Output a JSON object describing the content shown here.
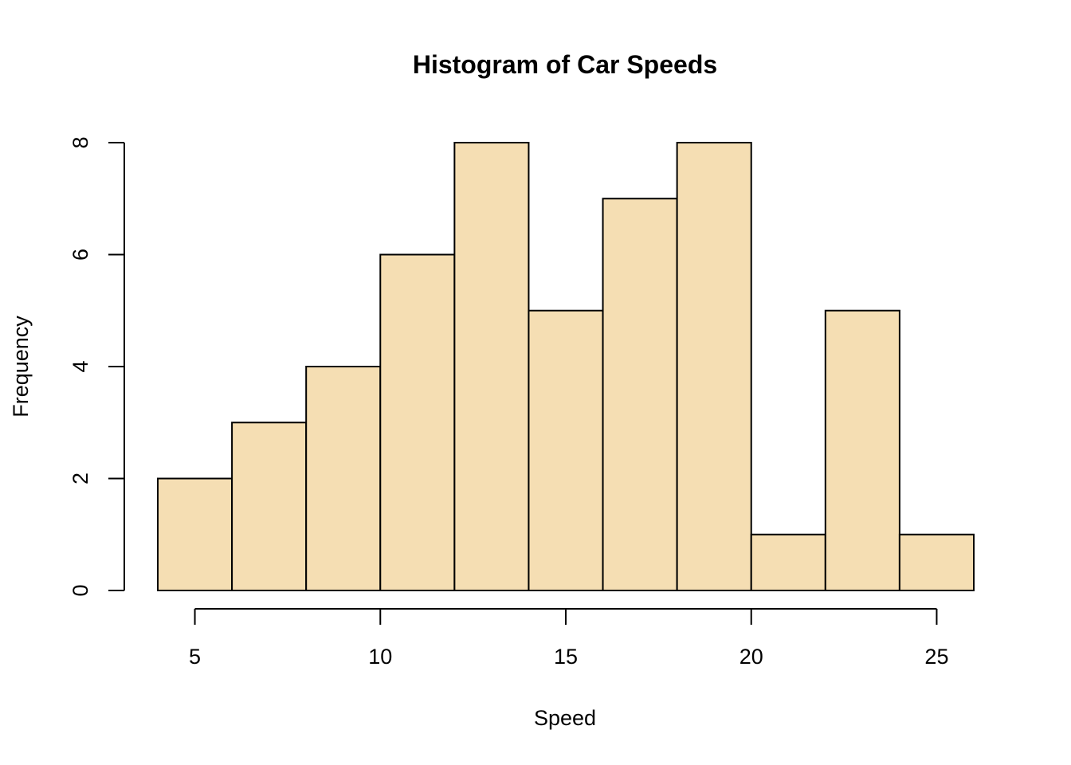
{
  "chart_data": {
    "type": "bar",
    "subtype": "histogram",
    "title": "Histogram of Car Speeds",
    "xlabel": "Speed",
    "ylabel": "Frequency",
    "bins": [
      {
        "start": 4,
        "end": 6,
        "count": 2
      },
      {
        "start": 6,
        "end": 8,
        "count": 3
      },
      {
        "start": 8,
        "end": 10,
        "count": 4
      },
      {
        "start": 10,
        "end": 12,
        "count": 6
      },
      {
        "start": 12,
        "end": 14,
        "count": 8
      },
      {
        "start": 14,
        "end": 16,
        "count": 5
      },
      {
        "start": 16,
        "end": 18,
        "count": 7
      },
      {
        "start": 18,
        "end": 20,
        "count": 8
      },
      {
        "start": 20,
        "end": 22,
        "count": 1
      },
      {
        "start": 22,
        "end": 24,
        "count": 5
      },
      {
        "start": 24,
        "end": 26,
        "count": 1
      }
    ],
    "xlim": [
      4,
      26
    ],
    "ylim": [
      0,
      8
    ],
    "x_ticks": [
      5,
      10,
      15,
      20,
      25
    ],
    "y_ticks": [
      0,
      2,
      4,
      6,
      8
    ],
    "bar_color": "#F5DEB3",
    "border_color": "#000000",
    "grid": false,
    "legend": "none"
  }
}
